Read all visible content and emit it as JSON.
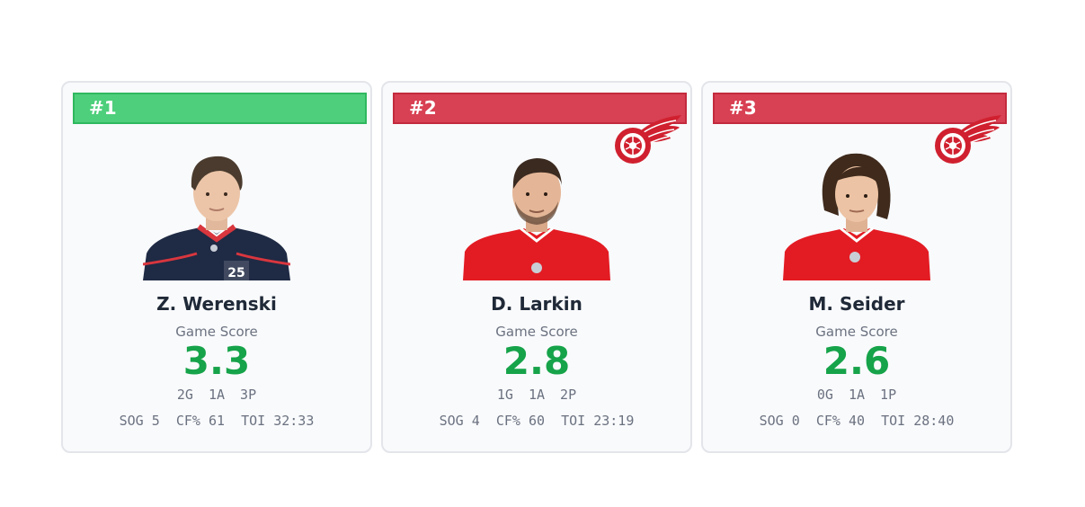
{
  "cards": [
    {
      "rank": "#1",
      "rank_color": "#4ecf7b",
      "team_logo": "",
      "jersey_color": "#1f2a44",
      "jersey_number": "25",
      "name": "Z. Werenski",
      "game_score_label": "Game Score",
      "game_score": "3.3",
      "points": "2G  1A  3P",
      "stats": "SOG 5  CF% 61  TOI 32:33"
    },
    {
      "rank": "#2",
      "rank_color": "#d84053",
      "team_logo": "red-wings-logo-icon",
      "jersey_color": "#e31b23",
      "name": "D. Larkin",
      "game_score_label": "Game Score",
      "game_score": "2.8",
      "points": "1G  1A  2P",
      "stats": "SOG 4  CF% 60  TOI 23:19"
    },
    {
      "rank": "#3",
      "rank_color": "#d84053",
      "team_logo": "red-wings-logo-icon",
      "jersey_color": "#e31b23",
      "name": "M. Seider",
      "game_score_label": "Game Score",
      "game_score": "2.6",
      "points": "0G  1A  1P",
      "stats": "SOG 0  CF% 40  TOI 28:40"
    }
  ]
}
